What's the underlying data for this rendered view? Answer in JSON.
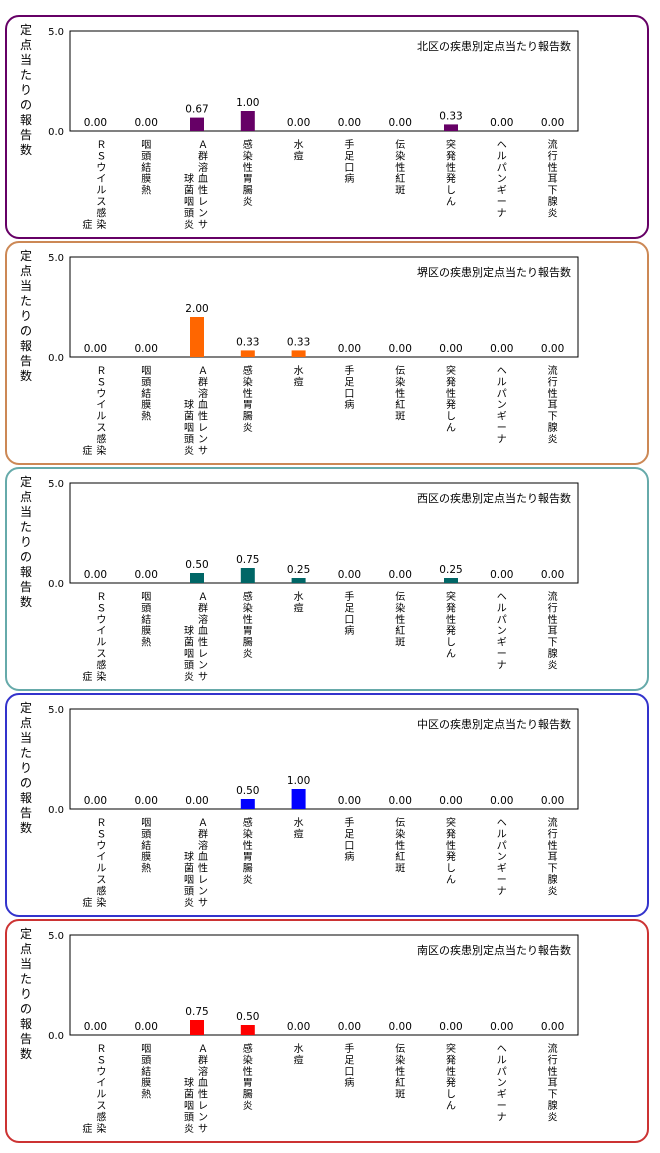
{
  "y_axis_title": "定点当たりの報告数",
  "categories": [
    [
      "Ｒ",
      "Ｓ",
      "ウ",
      "イ",
      "ル",
      "ス",
      "感",
      "染",
      "|",
      "症"
    ],
    [
      "咽",
      "頭",
      "結",
      "膜",
      "熱"
    ],
    [
      "Ａ",
      "群",
      "溶",
      "血",
      "性",
      "レ",
      "ン",
      "サ",
      "|",
      "球",
      "菌",
      "咽",
      "頭",
      "炎"
    ],
    [
      "感",
      "染",
      "性",
      "胃",
      "腸",
      "炎"
    ],
    [
      "水",
      "痘"
    ],
    [
      "手",
      "足",
      "口",
      "病"
    ],
    [
      "伝",
      "染",
      "性",
      "紅",
      "斑"
    ],
    [
      "突",
      "発",
      "性",
      "発",
      "し",
      "ん"
    ],
    [
      "ヘ",
      "ル",
      "パ",
      "ン",
      "ギ",
      "ー",
      "ナ"
    ],
    [
      "流",
      "行",
      "性",
      "耳",
      "下",
      "腺",
      "炎"
    ]
  ],
  "chart_data": [
    {
      "type": "bar",
      "title": "北区の疾患別定点当たり報告数",
      "color": "#660066",
      "frame_color": "#660066",
      "ylim": [
        0,
        5
      ],
      "yticks": [
        "5.0",
        "0.0"
      ],
      "values": [
        0,
        0,
        0.67,
        1.0,
        0,
        0,
        0,
        0.33,
        0,
        0
      ],
      "labels": [
        "0.00",
        "0.00",
        "0.67",
        "1.00",
        "0.00",
        "0.00",
        "0.00",
        "0.33",
        "0.00",
        "0.00"
      ]
    },
    {
      "type": "bar",
      "title": "堺区の疾患別定点当たり報告数",
      "color": "#ff6600",
      "frame_color": "#cc8855",
      "ylim": [
        0,
        5
      ],
      "yticks": [
        "5.0",
        "0.0"
      ],
      "values": [
        0,
        0,
        2.0,
        0.33,
        0.33,
        0,
        0,
        0,
        0,
        0
      ],
      "labels": [
        "0.00",
        "0.00",
        "2.00",
        "0.33",
        "0.33",
        "0.00",
        "0.00",
        "0.00",
        "0.00",
        "0.00"
      ]
    },
    {
      "type": "bar",
      "title": "西区の疾患別定点当たり報告数",
      "color": "#006666",
      "frame_color": "#66aaaa",
      "ylim": [
        0,
        5
      ],
      "yticks": [
        "5.0",
        "0.0"
      ],
      "values": [
        0,
        0,
        0.5,
        0.75,
        0.25,
        0,
        0,
        0.25,
        0,
        0
      ],
      "labels": [
        "0.00",
        "0.00",
        "0.50",
        "0.75",
        "0.25",
        "0.00",
        "0.00",
        "0.25",
        "0.00",
        "0.00"
      ]
    },
    {
      "type": "bar",
      "title": "中区の疾患別定点当たり報告数",
      "color": "#0000ff",
      "frame_color": "#3333cc",
      "ylim": [
        0,
        5
      ],
      "yticks": [
        "5.0",
        "0.0"
      ],
      "values": [
        0,
        0,
        0,
        0.5,
        1.0,
        0,
        0,
        0,
        0,
        0
      ],
      "labels": [
        "0.00",
        "0.00",
        "0.00",
        "0.50",
        "1.00",
        "0.00",
        "0.00",
        "0.00",
        "0.00",
        "0.00"
      ]
    },
    {
      "type": "bar",
      "title": "南区の疾患別定点当たり報告数",
      "color": "#ff0000",
      "frame_color": "#cc3333",
      "ylim": [
        0,
        5
      ],
      "yticks": [
        "5.0",
        "0.0"
      ],
      "values": [
        0,
        0,
        0.75,
        0.5,
        0,
        0,
        0,
        0,
        0,
        0
      ],
      "labels": [
        "0.00",
        "0.00",
        "0.75",
        "0.50",
        "0.00",
        "0.00",
        "0.00",
        "0.00",
        "0.00",
        "0.00"
      ]
    }
  ]
}
